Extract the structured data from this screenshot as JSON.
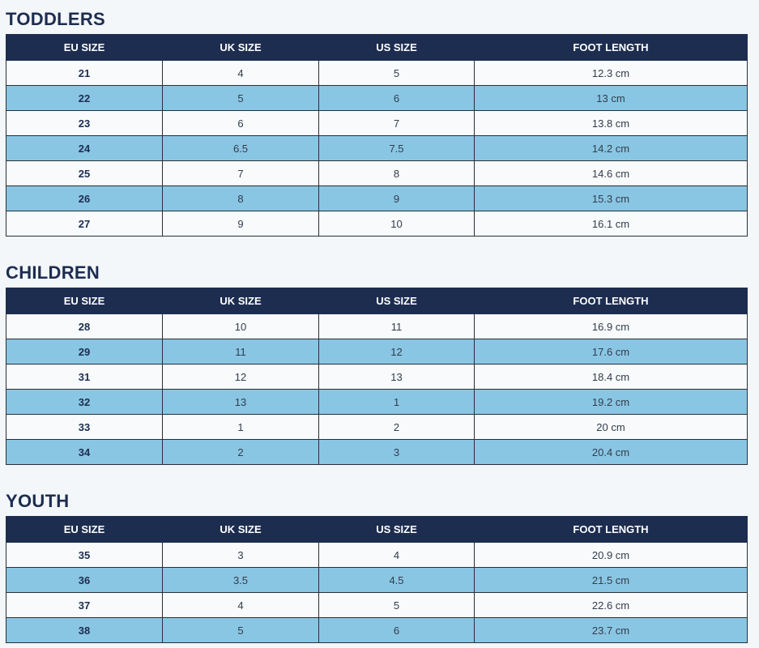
{
  "headers": [
    "EU SIZE",
    "UK SIZE",
    "US SIZE",
    "FOOT LENGTH"
  ],
  "sections": [
    {
      "title": "TODDLERS",
      "rows": [
        [
          "21",
          "4",
          "5",
          "12.3 cm"
        ],
        [
          "22",
          "5",
          "6",
          "13 cm"
        ],
        [
          "23",
          "6",
          "7",
          "13.8 cm"
        ],
        [
          "24",
          "6.5",
          "7.5",
          "14.2 cm"
        ],
        [
          "25",
          "7",
          "8",
          "14.6 cm"
        ],
        [
          "26",
          "8",
          "9",
          "15.3 cm"
        ],
        [
          "27",
          "9",
          "10",
          "16.1 cm"
        ]
      ]
    },
    {
      "title": "CHILDREN",
      "rows": [
        [
          "28",
          "10",
          "11",
          "16.9 cm"
        ],
        [
          "29",
          "11",
          "12",
          "17.6 cm"
        ],
        [
          "31",
          "12",
          "13",
          "18.4 cm"
        ],
        [
          "32",
          "13",
          "1",
          "19.2 cm"
        ],
        [
          "33",
          "1",
          "2",
          "20 cm"
        ],
        [
          "34",
          "2",
          "3",
          "20.4 cm"
        ]
      ]
    },
    {
      "title": "YOUTH",
      "rows": [
        [
          "35",
          "3",
          "4",
          "20.9 cm"
        ],
        [
          "36",
          "3.5",
          "4.5",
          "21.5 cm"
        ],
        [
          "37",
          "4",
          "5",
          "22.6 cm"
        ],
        [
          "38",
          "5",
          "6",
          "23.7 cm"
        ]
      ]
    }
  ],
  "colors": {
    "header_bg": "#1d2d50",
    "row_light": "#f8fafc",
    "row_blue": "#89c6e4",
    "page_bg": "#f3f7fa"
  }
}
